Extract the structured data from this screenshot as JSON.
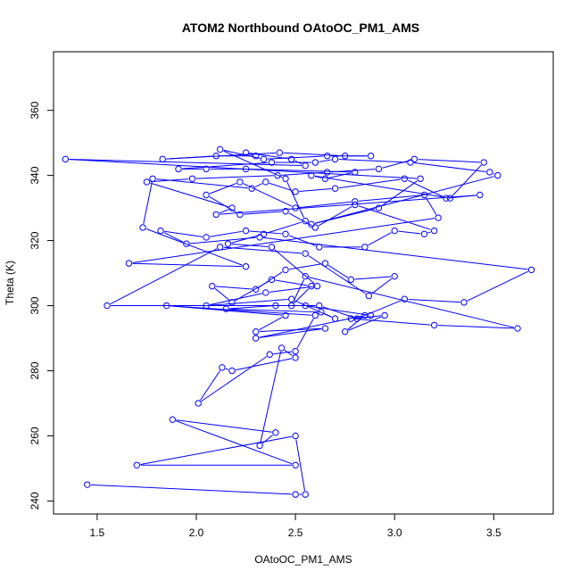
{
  "chart_data": {
    "type": "scatter",
    "title": "ATOM2 Northbound OAtoOC_PM1_AMS",
    "xlabel": "OAtoOC_PM1_AMS",
    "ylabel": "Theta (K)",
    "xlim": [
      1.28,
      3.8
    ],
    "ylim": [
      236,
      378
    ],
    "xticks": [
      1.5,
      2.0,
      2.5,
      3.0,
      3.5
    ],
    "yticks": [
      240,
      260,
      280,
      300,
      320,
      340,
      360
    ],
    "xtick_labels": [
      "1.5",
      "2.0",
      "2.5",
      "3.0",
      "3.5"
    ],
    "ytick_labels": [
      "240",
      "260",
      "280",
      "300",
      "320",
      "340",
      "360"
    ],
    "grid": false,
    "line_connected": true,
    "marker": "open-circle",
    "color": "#0000ff",
    "series": [
      {
        "x": [
          1.45,
          2.5,
          2.55,
          2.5,
          1.7,
          2.5,
          1.88,
          2.4,
          2.32,
          2.43,
          2.5,
          2.18,
          2.13,
          2.01,
          2.37,
          2.5,
          2.6,
          1.85,
          2.45,
          2.3,
          2.65,
          2.3,
          2.85,
          2.75,
          2.95,
          2.78,
          3.2,
          3.62,
          2.55,
          2.48,
          2.58,
          2.38,
          2.18,
          2.08,
          2.3,
          2.45,
          2.65,
          2.78,
          3.0,
          2.87,
          2.55,
          2.12,
          1.55,
          2.62,
          2.81,
          3.05,
          3.35,
          3.69,
          2.32,
          1.95,
          1.82,
          2.05,
          2.25,
          2.45,
          2.62,
          2.85,
          3.0,
          3.15,
          3.2,
          2.8,
          2.6,
          2.45,
          2.22,
          2.05,
          2.22,
          2.5,
          2.8,
          3.15,
          3.22,
          1.66,
          2.25,
          1.73,
          1.78,
          2.28,
          2.35,
          2.5,
          2.7,
          3.05,
          3.26,
          3.43,
          2.1,
          2.18,
          1.75,
          1.98,
          2.41,
          2.66,
          2.92,
          3.1,
          3.45,
          3.28,
          2.58,
          2.65,
          2.8,
          2.25,
          2.05,
          1.91,
          2.38,
          2.6,
          2.7,
          3.08,
          3.48,
          3.52,
          2.58,
          2.92,
          3.13,
          1.34,
          2.55,
          2.48,
          2.25,
          2.3,
          2.1,
          1.83,
          2.42,
          2.75,
          2.88,
          2.66,
          2.34,
          2.12,
          2.45,
          2.55,
          2.34,
          2.16,
          2.38,
          2.61,
          2.35,
          2.05,
          2.48,
          2.7,
          2.63,
          2.15,
          2.4,
          2.55,
          2.88
        ],
        "y": [
          245,
          242,
          242,
          260,
          251,
          251,
          265,
          261,
          257,
          287,
          284,
          280,
          281,
          270,
          285,
          286,
          297,
          300,
          297,
          292,
          293,
          290,
          297,
          292,
          297,
          296,
          294,
          293,
          309,
          300,
          306,
          308,
          301,
          306,
          305,
          311,
          313,
          308,
          309,
          303,
          316,
          318,
          300,
          300,
          296,
          302,
          301,
          311,
          321,
          319,
          323,
          321,
          323,
          322,
          318,
          318,
          323,
          322,
          323,
          331,
          324,
          329,
          328,
          334,
          338,
          330,
          332,
          334,
          327,
          313,
          312,
          324,
          339,
          336,
          338,
          335,
          336,
          339,
          333,
          334,
          328,
          330,
          338,
          339,
          340,
          341,
          342,
          345,
          344,
          333,
          340,
          339,
          341,
          342,
          342,
          342,
          344,
          344,
          345,
          344,
          341,
          340,
          325,
          330,
          339,
          345,
          343,
          345,
          347,
          346,
          346,
          345,
          347,
          346,
          346,
          346,
          345,
          348,
          339,
          326,
          322,
          319,
          318,
          306,
          304,
          300,
          302,
          296,
          298,
          299,
          300,
          300,
          297
        ]
      }
    ]
  }
}
